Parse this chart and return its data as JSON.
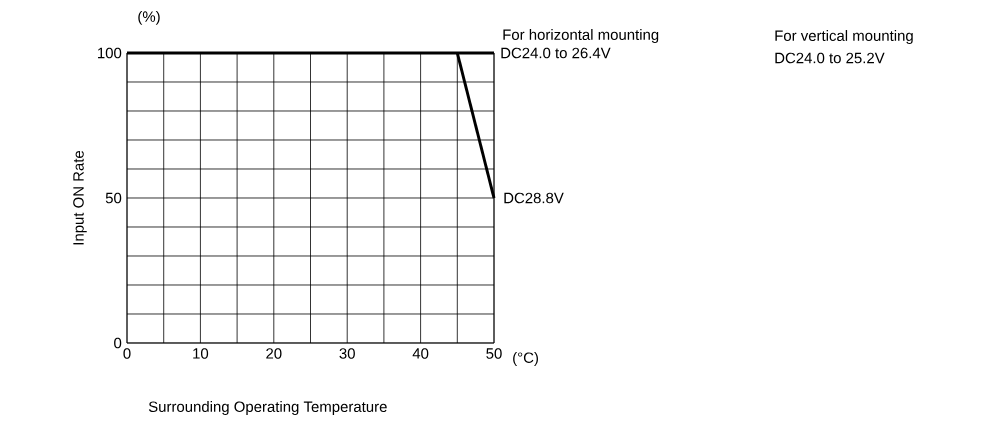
{
  "chart_data": {
    "type": "line",
    "xlabel": "Surrounding Operating Temperature",
    "ylabel": "Input ON Rate",
    "xlim": [
      0,
      50
    ],
    "ylim": [
      0,
      100
    ],
    "xticks": [
      0,
      {
        "value": 5,
        "label": null
      },
      10,
      {
        "value": 15,
        "label": null
      },
      20,
      {
        "value": 25,
        "label": null
      },
      30,
      {
        "value": 35,
        "label": null
      },
      40,
      {
        "value": 45,
        "label": null
      },
      50
    ],
    "yticks": [
      0,
      {
        "value": 10,
        "label": null
      },
      {
        "value": 20,
        "label": null
      },
      {
        "value": 30,
        "label": null
      },
      {
        "value": 40,
        "label": null
      },
      50,
      {
        "value": 60,
        "label": null
      },
      {
        "value": 70,
        "label": null
      },
      {
        "value": 80,
        "label": null
      },
      {
        "value": 90,
        "label": null
      },
      100
    ],
    "grid": true,
    "legend": false,
    "marker": "none",
    "line_style": "solid",
    "series": [
      {
        "name": "DC24.0 to 26.4V",
        "color": "#000000",
        "x": [
          0,
          50
        ],
        "values": [
          100,
          100
        ]
      },
      {
        "name": "DC28.8V",
        "color": "#000000",
        "x": [
          45,
          50
        ],
        "values": [
          100,
          50
        ]
      }
    ],
    "annotations": [
      "(%)",
      "(°C)",
      "For horizontal mounting",
      "For vertical mounting",
      "DC24.0 to 25.2V"
    ]
  }
}
